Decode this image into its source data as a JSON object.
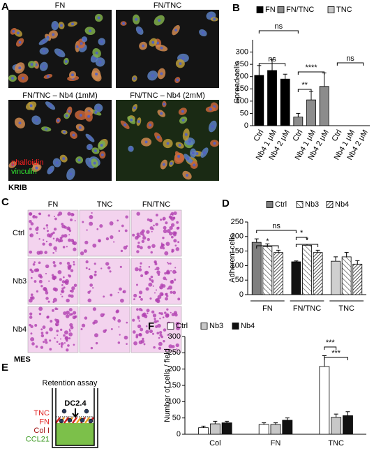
{
  "panel_a": {
    "letter": "A",
    "captions": [
      "FN",
      "FN/TNC",
      "FN/TNC – Nb4 (1mM)",
      "FN/TNC – Nb4 (2mM)"
    ],
    "stains": [
      "phalloidin",
      "vinculin"
    ],
    "cell_line": "KRIB"
  },
  "panel_c": {
    "letter": "C",
    "columns": [
      "FN",
      "TNC",
      "FN/TNC"
    ],
    "rows": [
      "Ctrl",
      "Nb3",
      "Nb4"
    ],
    "cell_line": "MES"
  },
  "panel_e": {
    "letter": "E",
    "title": "Retention assay",
    "cells": "DC2.4",
    "layers": [
      "TNC",
      "FN",
      "Col I",
      "CCL21"
    ]
  },
  "chart_data": [
    {
      "panel": "B",
      "type": "bar",
      "y_label": "Spread cells",
      "categories": [
        "Ctrl",
        "Nb4 1 μM",
        "Nb4 2 μM",
        "Ctrl",
        "Nb4 1 μM",
        "Nb4 2 μM",
        "Ctrl",
        "Nb4 1 μM",
        "Nb4 2 μM"
      ],
      "series": [
        {
          "name": "FN",
          "color": "#000000",
          "values": [
            205,
            225,
            190,
            null,
            null,
            null,
            null,
            null,
            null
          ],
          "errors": [
            40,
            45,
            20,
            null,
            null,
            null,
            null,
            null,
            null
          ]
        },
        {
          "name": "FN/TNC",
          "color": "#8c8c8c",
          "values": [
            null,
            null,
            null,
            35,
            105,
            160,
            null,
            null,
            null
          ],
          "errors": [
            null,
            null,
            null,
            15,
            35,
            55,
            null,
            null,
            null
          ]
        },
        {
          "name": "TNC",
          "color": "#c8c8c8",
          "values": [
            null,
            null,
            null,
            null,
            null,
            null,
            0,
            0,
            0
          ]
        }
      ],
      "ylim": [
        0,
        350
      ],
      "yticks": [
        0,
        50,
        100,
        150,
        200,
        250,
        300
      ],
      "annotations": [
        "ns",
        "ns",
        "****",
        "**",
        "ns"
      ]
    },
    {
      "panel": "D",
      "type": "bar",
      "y_label": "Adherent cells",
      "categories": [
        "FN",
        "FN/TNC",
        "TNC"
      ],
      "series": [
        {
          "name": "Ctrl",
          "colors": [
            "#7f7f7f",
            "#111111",
            "#d0d0d0"
          ],
          "values": [
            180,
            113,
            115
          ],
          "errors": [
            12,
            3,
            15
          ]
        },
        {
          "name": "Nb3",
          "hatch": "sparse",
          "values": [
            165,
            170,
            130
          ],
          "errors": [
            10,
            3,
            15
          ]
        },
        {
          "name": "Nb4",
          "hatch": "dense",
          "values": [
            145,
            145,
            105
          ],
          "errors": [
            8,
            8,
            12
          ]
        }
      ],
      "ylim": [
        0,
        250
      ],
      "yticks": [
        0,
        50,
        100,
        150,
        200,
        250
      ],
      "annotations": [
        "ns",
        "*",
        "*",
        "*"
      ]
    },
    {
      "panel": "F",
      "type": "bar",
      "y_label": "Number  of cells / field",
      "categories": [
        "Col",
        "FN",
        "TNC"
      ],
      "series": [
        {
          "name": "Ctrl",
          "color": "#ffffff",
          "values": [
            20,
            30,
            208
          ],
          "errors": [
            5,
            5,
            33
          ]
        },
        {
          "name": "Nb3",
          "color": "#c8c8c8",
          "values": [
            32,
            30,
            52
          ],
          "errors": [
            8,
            5,
            10
          ]
        },
        {
          "name": "Nb4",
          "color": "#111111",
          "values": [
            35,
            43,
            57
          ],
          "errors": [
            5,
            7,
            12
          ]
        }
      ],
      "ylim": [
        0,
        300
      ],
      "yticks": [
        0,
        50,
        100,
        150,
        200,
        250,
        300
      ],
      "annotations": [
        "***",
        "***"
      ]
    }
  ]
}
